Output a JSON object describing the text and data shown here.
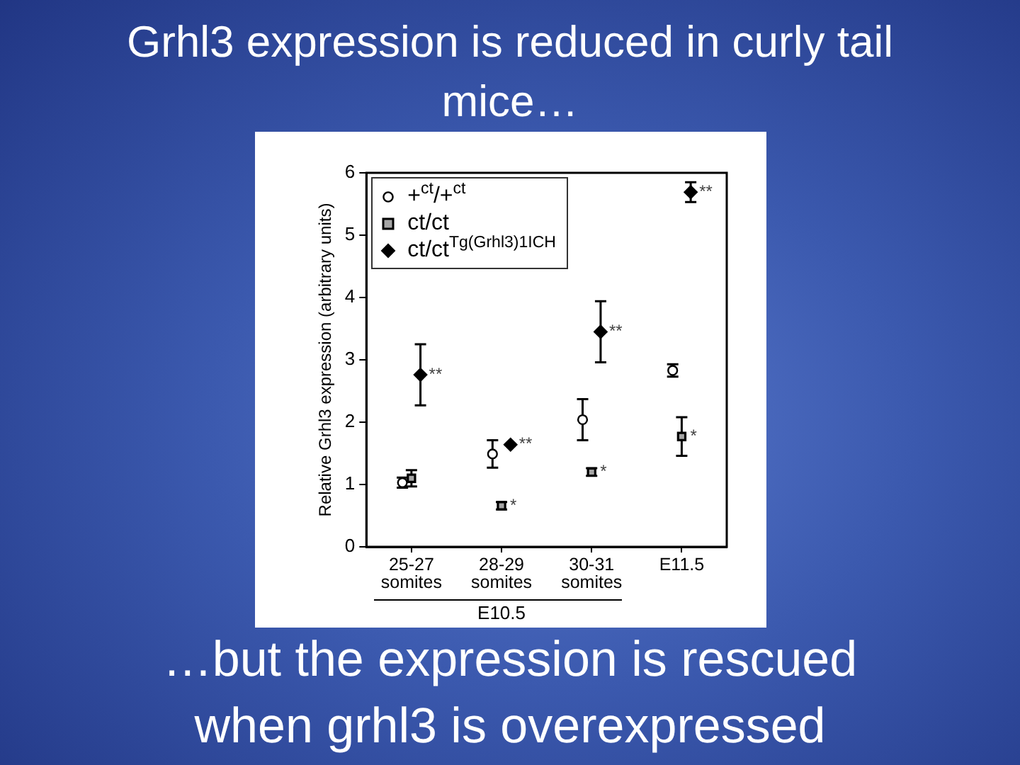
{
  "chart_data": {
    "type": "scatter",
    "title": "Grhl3 expression is reduced in curly tail mice…",
    "ylabel": "Relative Grhl3 expression (arbitrary units)",
    "categories": [
      "25-27 somites",
      "28-29 somites",
      "30-31 somites",
      "E11.5"
    ],
    "series": [
      {
        "name": "+$^{ct}$/+$^{ct}$",
        "color": "#ffffff",
        "marker": "circle",
        "values": [
          1.03,
          1.49,
          2.04,
          2.83
        ],
        "errors": [
          0.08,
          0.22,
          0.33,
          0.1
        ]
      },
      {
        "name": "ct/ct",
        "color": "#a6a6a6",
        "marker": "square",
        "values": [
          1.1,
          0.66,
          1.2,
          1.77
        ],
        "errors": [
          0.13,
          0.06,
          0.06,
          0.31
        ]
      },
      {
        "name": "ct/ct$^{Tg(Grhl3)1ICH}$",
        "color": "#000000",
        "marker": "diamond",
        "values": [
          2.76,
          1.64,
          3.45,
          5.69
        ],
        "errors": [
          0.49,
          null,
          0.49,
          0.16
        ]
      }
    ],
    "ylim": [
      0,
      6
    ],
    "yticks": [
      0,
      1,
      2,
      3,
      4,
      5,
      6
    ],
    "legend": "top left",
    "annotations": [
      {
        "text": "**",
        "x": "25-27 somites",
        "y": 2.76
      },
      {
        "text": "**",
        "x": "28-29 somites",
        "y": 1.64
      },
      {
        "text": "*",
        "x": "28-29 somites",
        "y": 0.66
      },
      {
        "text": "**",
        "x": "30-31 somites",
        "y": 3.45
      },
      {
        "text": "*",
        "x": "30-31 somites",
        "y": 1.2
      },
      {
        "text": "**",
        "x": "E11.5",
        "y": 5.69
      },
      {
        "text": "*",
        "x": "E11.5",
        "y": 1.77
      },
      "E10.5",
      "…but the expression is rescued when grhl3 is overexpressed"
    ]
  }
}
